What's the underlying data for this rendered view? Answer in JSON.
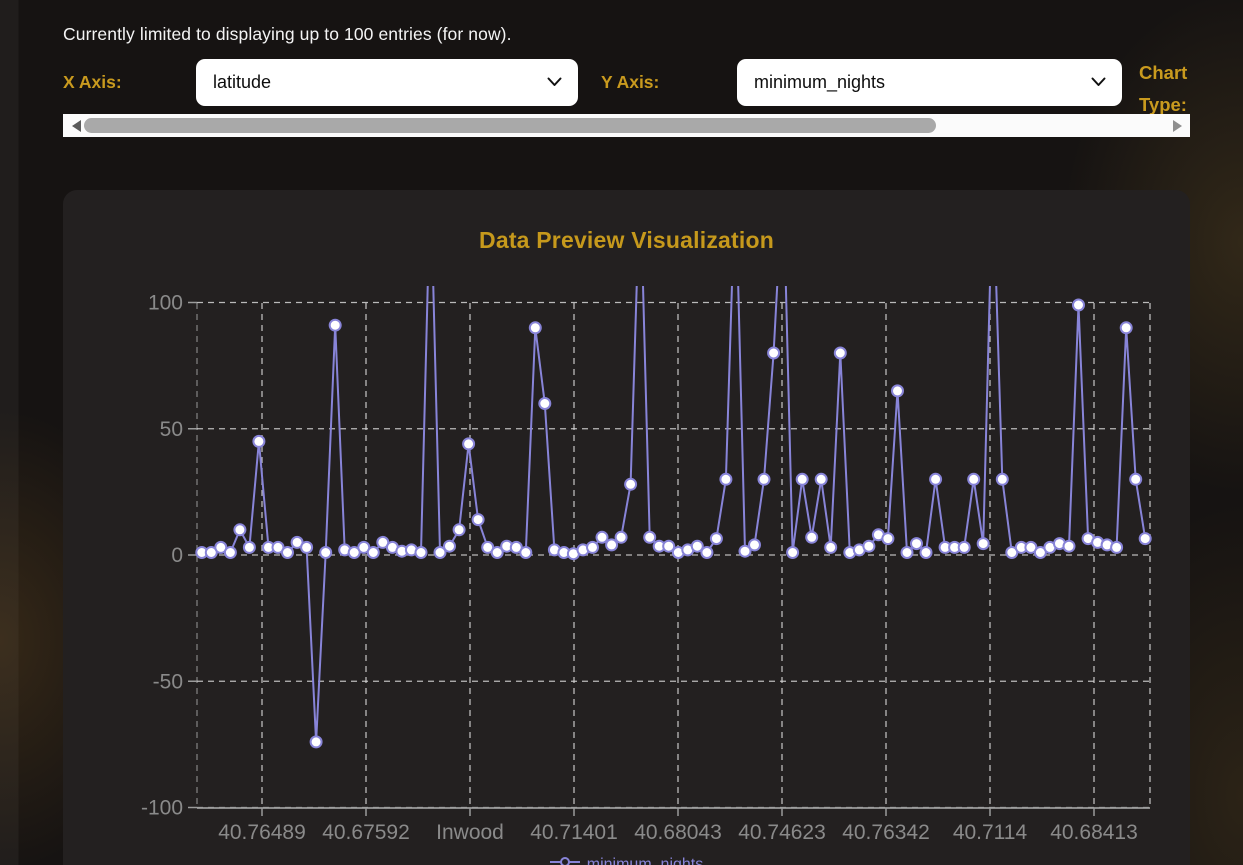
{
  "notice": "Currently limited to displaying up to 100 entries (for now).",
  "controls": {
    "x_axis_label": "X Axis:",
    "x_axis_value": "latitude",
    "y_axis_label": "Y Axis:",
    "y_axis_value": "minimum_nights",
    "chart_type_label": "Chart Type:"
  },
  "colors": {
    "accent_gold": "#c99a1e",
    "line": "#8884d8",
    "dot_fill": "#ffffff",
    "grid": "#d6d6d6",
    "axis_line": "#9b9b9b",
    "y_axis_dash": "#7d7d7d",
    "tick_text": "#8a8a8a",
    "card_bg": "#232020"
  },
  "chart_data": {
    "type": "line",
    "title": "Data Preview Visualization",
    "legend_label": "minimum_nights",
    "legend_position": "bottom",
    "x_field": "latitude",
    "y_field": "minimum_nights",
    "grid": "dashed",
    "ylim": [
      -100,
      100
    ],
    "y_ticks": [
      100,
      50,
      0,
      -50,
      -100
    ],
    "x_tick_labels": [
      "40.76489",
      "40.67592",
      "Inwood",
      "40.71401",
      "40.68043",
      "40.74623",
      "40.76342",
      "40.7114",
      "40.68413"
    ],
    "note": "100 points; values above the fixed y-domain top (100) are clipped at the plot top; 150 marks off-scale spikes",
    "values": [
      1,
      1,
      3,
      1,
      10,
      3,
      45,
      3,
      3,
      1,
      5,
      3,
      -74,
      1,
      91,
      2,
      1,
      3,
      1,
      5,
      3,
      1.5,
      2,
      1,
      150,
      1,
      3.5,
      10,
      44,
      14,
      3,
      1,
      3.5,
      3,
      1,
      90,
      60,
      2,
      1,
      0.5,
      2,
      3,
      7,
      4,
      7,
      28,
      150,
      7,
      3.5,
      3.5,
      1,
      2,
      3.5,
      1,
      6.5,
      30,
      150,
      1.5,
      4,
      30,
      80,
      150,
      1,
      30,
      7,
      30,
      3,
      80,
      1,
      2,
      3.5,
      8,
      6.5,
      65,
      1,
      4.5,
      1,
      30,
      3,
      3,
      3,
      30,
      4.5,
      150,
      30,
      1,
      3,
      3,
      1,
      3,
      4.5,
      3.5,
      99,
      6.5,
      5,
      4,
      3,
      90,
      30,
      6.5
    ]
  }
}
